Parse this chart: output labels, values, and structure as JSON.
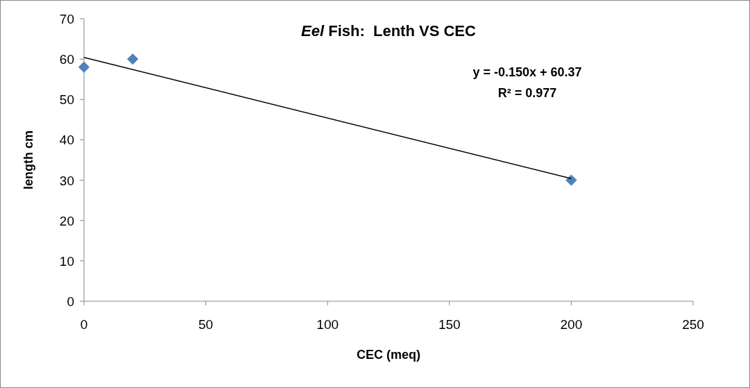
{
  "chart_data": {
    "type": "scatter",
    "title": "Eel Fish:  Lenth VS CEC",
    "xlabel": "CEC (meq)",
    "ylabel": "length cm",
    "xlim": [
      0,
      250
    ],
    "xticks": [
      0,
      50,
      100,
      150,
      200,
      250
    ],
    "ylim": [
      0,
      70
    ],
    "yticks": [
      0,
      10,
      20,
      30,
      40,
      50,
      60,
      70
    ],
    "grid": false,
    "marker": "diamond",
    "annotations": [
      "y = -0.150x + 60.37",
      "R² = 0.977"
    ],
    "series": [
      {
        "x": [
          0,
          20,
          200
        ],
        "values": [
          58,
          60,
          30
        ],
        "color": "#4f81bd"
      },
      {
        "type": "line",
        "x": [
          0,
          200
        ],
        "values": [
          60.4,
          30.4
        ],
        "color": "#000000",
        "marker": "none"
      }
    ]
  }
}
